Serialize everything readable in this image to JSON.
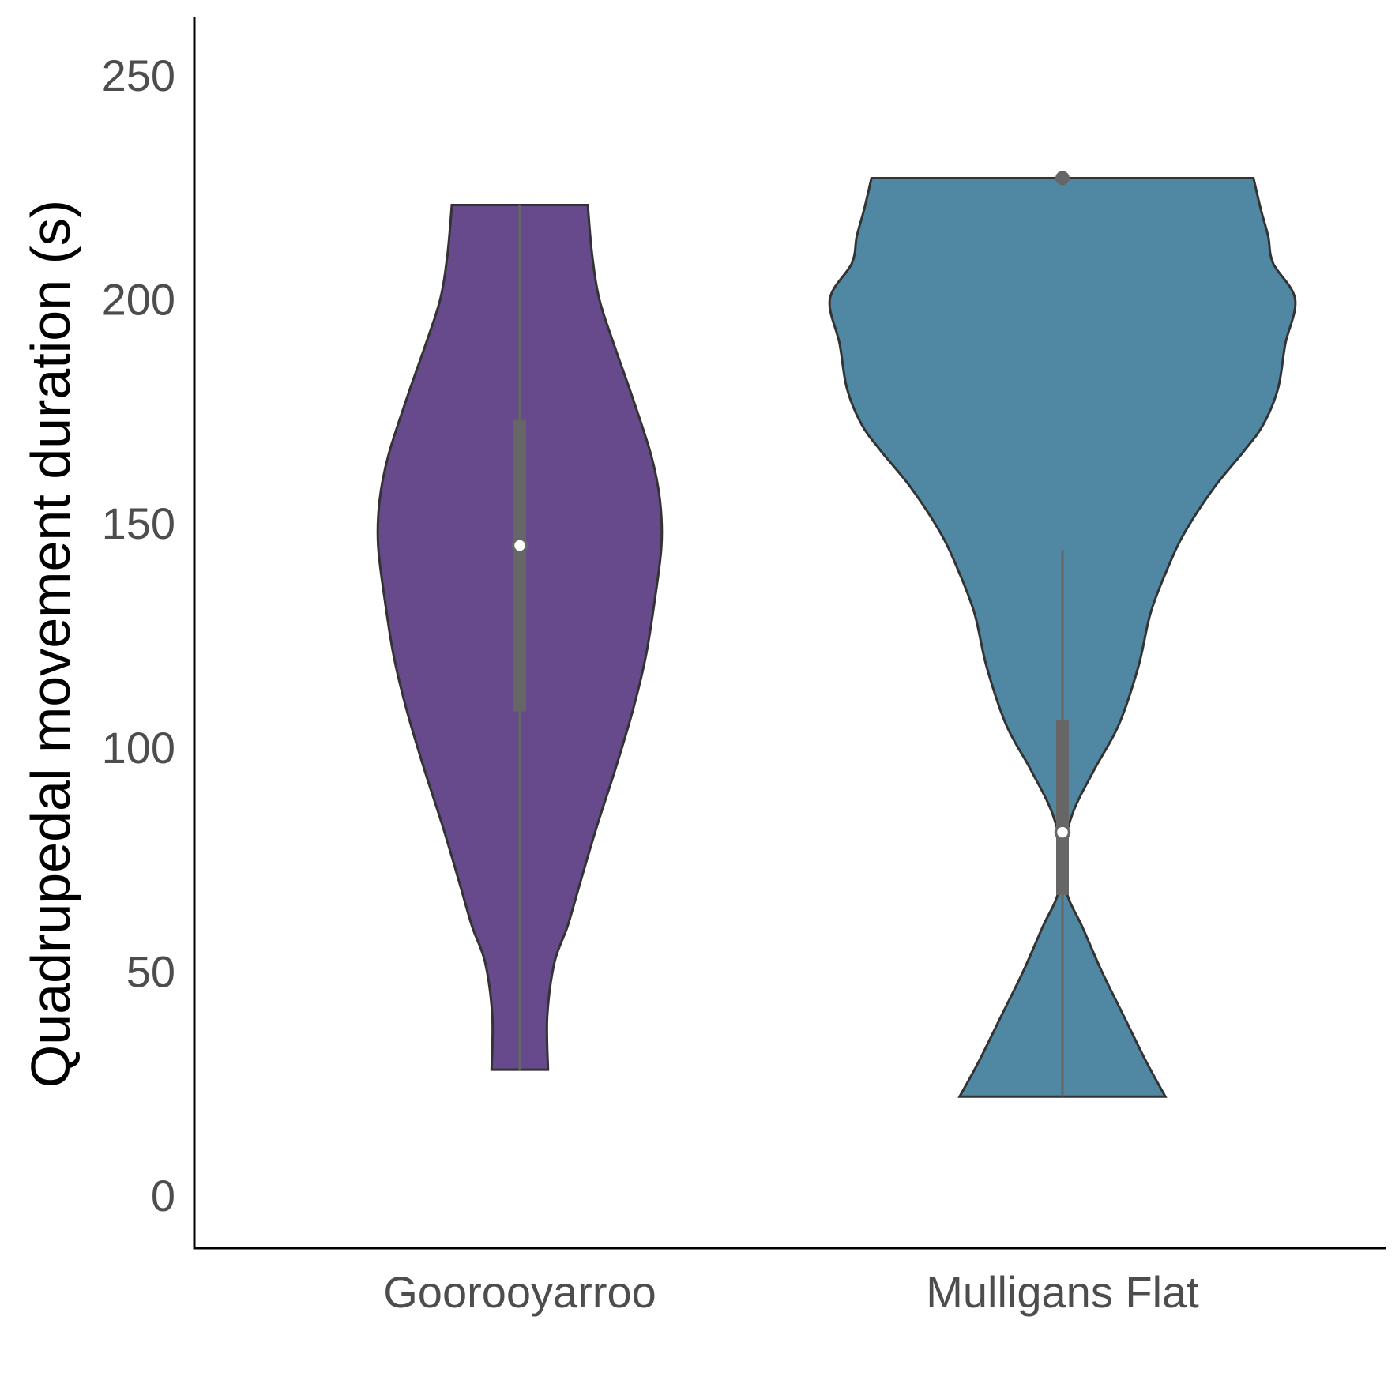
{
  "chart_data": {
    "type": "violin",
    "title": "",
    "xlabel": "",
    "ylabel": "Quadrupedal movement duration (s)",
    "ylim": [
      -12,
      262
    ],
    "yticks": [
      0,
      50,
      100,
      150,
      200,
      250
    ],
    "grid": false,
    "legend": "none",
    "categories": [
      "Goorooyarroo",
      "Mulligans Flat"
    ],
    "series": [
      {
        "category": "Goorooyarroo",
        "color": "#674a8b",
        "min": 28,
        "q1": 108,
        "median": 145,
        "q3": 173,
        "max": 221,
        "outliers": [],
        "density": [
          [
            28,
            0.195
          ],
          [
            40,
            0.19
          ],
          [
            52,
            0.24
          ],
          [
            60,
            0.33
          ],
          [
            70,
            0.42
          ],
          [
            82,
            0.53
          ],
          [
            95,
            0.66
          ],
          [
            108,
            0.78
          ],
          [
            120,
            0.87
          ],
          [
            132,
            0.93
          ],
          [
            145,
            0.98
          ],
          [
            155,
            0.97
          ],
          [
            165,
            0.91
          ],
          [
            178,
            0.78
          ],
          [
            190,
            0.65
          ],
          [
            200,
            0.55
          ],
          [
            210,
            0.5
          ],
          [
            221,
            0.47
          ]
        ]
      },
      {
        "category": "Mulligans Flat",
        "color": "#5088a3",
        "min": 22,
        "q1": 67,
        "median": 81,
        "q3": 106,
        "max": 144,
        "outliers": [
          227
        ],
        "density": [
          [
            22,
            0.42
          ],
          [
            30,
            0.34
          ],
          [
            40,
            0.25
          ],
          [
            50,
            0.16
          ],
          [
            60,
            0.08
          ],
          [
            67,
            0.02
          ],
          [
            75,
            0.0
          ],
          [
            85,
            0.04
          ],
          [
            95,
            0.13
          ],
          [
            105,
            0.23
          ],
          [
            118,
            0.31
          ],
          [
            130,
            0.36
          ],
          [
            140,
            0.43
          ],
          [
            148,
            0.5
          ],
          [
            158,
            0.62
          ],
          [
            166,
            0.74
          ],
          [
            172,
            0.82
          ],
          [
            180,
            0.88
          ],
          [
            190,
            0.91
          ],
          [
            200,
            0.95
          ],
          [
            208,
            0.86
          ],
          [
            214,
            0.84
          ],
          [
            220,
            0.81
          ],
          [
            227,
            0.78
          ]
        ]
      }
    ]
  }
}
